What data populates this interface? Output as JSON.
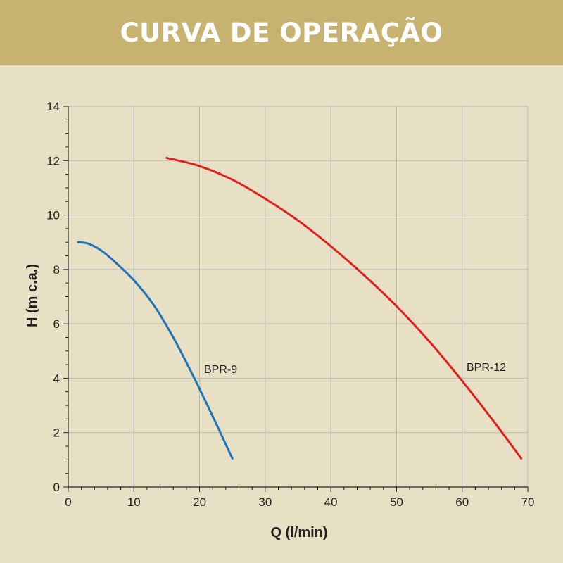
{
  "header": {
    "title": "CURVA DE OPERAÇÃO"
  },
  "colors": {
    "banner": "#c7b36f",
    "background": "#e8e0c5",
    "grid": "#b8b8b8"
  },
  "chart_data": {
    "type": "line",
    "xlabel": "Q (l/min)",
    "ylabel": "H (m c.a.)",
    "xlim": [
      0,
      70
    ],
    "ylim": [
      0,
      14
    ],
    "xticks": [
      0,
      10,
      20,
      30,
      40,
      50,
      60,
      70
    ],
    "yticks": [
      0,
      2,
      4,
      6,
      8,
      10,
      12,
      14
    ],
    "grid": true,
    "series": [
      {
        "name": "BPR-9",
        "color": "#1f74b8",
        "x": [
          1.5,
          3,
          5,
          7,
          10,
          13,
          16,
          19,
          22,
          25
        ],
        "y": [
          9.0,
          8.95,
          8.7,
          8.3,
          7.6,
          6.7,
          5.5,
          4.1,
          2.6,
          1.05
        ]
      },
      {
        "name": "BPR-12",
        "color": "#e0201e",
        "x": [
          15,
          20,
          25,
          30,
          35,
          40,
          45,
          50,
          55,
          60,
          65,
          69
        ],
        "y": [
          12.1,
          11.8,
          11.3,
          10.6,
          9.8,
          8.85,
          7.8,
          6.65,
          5.35,
          3.9,
          2.35,
          1.05
        ]
      }
    ]
  }
}
